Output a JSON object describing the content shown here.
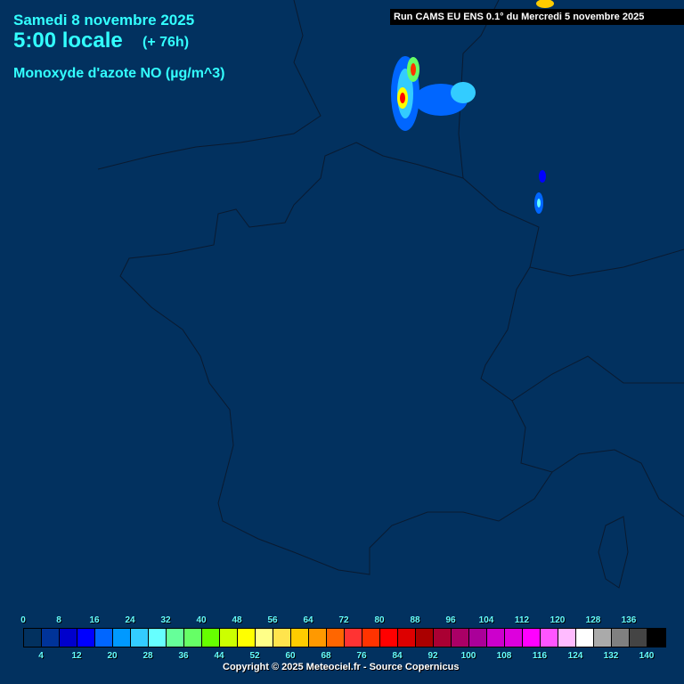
{
  "header": {
    "date": "Samedi 8 novembre 2025",
    "time": "5:00 locale",
    "lead": "(+ 76h)",
    "variable": "Monoxyde d'azote NO (µg/m^3)",
    "run": "Run CAMS EU ENS 0.1° du Mercredi 5 novembre 2025"
  },
  "legend": {
    "top_labels": [
      "0",
      "8",
      "16",
      "24",
      "32",
      "40",
      "48",
      "56",
      "64",
      "72",
      "80",
      "88",
      "96",
      "104",
      "112",
      "120",
      "128",
      "136"
    ],
    "bottom_labels": [
      "4",
      "12",
      "20",
      "28",
      "36",
      "44",
      "52",
      "60",
      "68",
      "76",
      "84",
      "92",
      "100",
      "108",
      "116",
      "124",
      "132",
      "140"
    ],
    "colors": [
      "#02315f",
      "#003399",
      "#0000cc",
      "#0000ff",
      "#0066ff",
      "#0099ff",
      "#33ccff",
      "#66ffff",
      "#66ff99",
      "#66ff66",
      "#66ff00",
      "#ccff00",
      "#ffff00",
      "#ffff88",
      "#ffe44d",
      "#ffcc00",
      "#ff9900",
      "#ff6600",
      "#ff3333",
      "#ff3300",
      "#ff0000",
      "#dd0000",
      "#aa0000",
      "#aa0033",
      "#aa0066",
      "#aa0099",
      "#cc00cc",
      "#dd00dd",
      "#ff00ff",
      "#ff55ff",
      "#ffbbff",
      "#ffffff",
      "#aaaaaa",
      "#808080",
      "#444444",
      "#000000"
    ]
  },
  "footer": {
    "copyright": "Copyright © 2025 Meteociel.fr - Source Copernicus"
  }
}
